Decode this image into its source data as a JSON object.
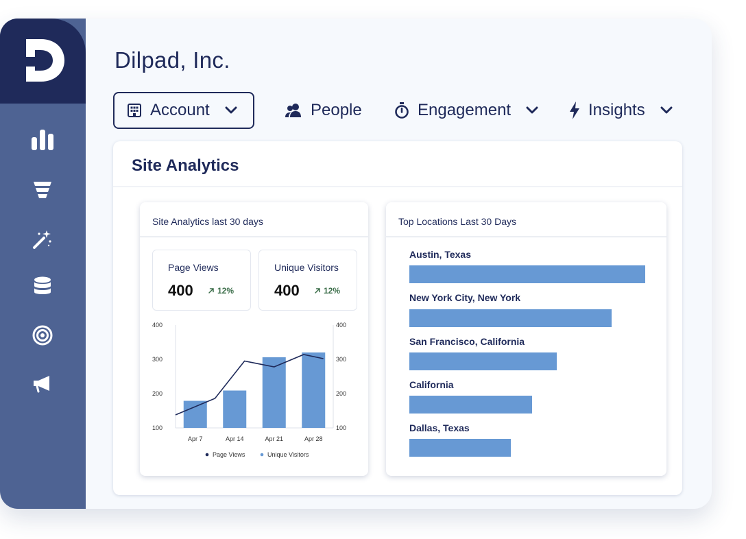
{
  "app": {
    "company_name": "Dilpad, Inc."
  },
  "nav": {
    "account": "Account",
    "people": "People",
    "engagement": "Engagement",
    "insights": "Insights"
  },
  "panel": {
    "title": "Site Analytics"
  },
  "analytics_card": {
    "title": "Site Analytics last 30 days",
    "stats": [
      {
        "label": "Page Views",
        "value": "400",
        "delta": "12%"
      },
      {
        "label": "Unique Visitors",
        "value": "400",
        "delta": "12%"
      }
    ]
  },
  "locations_card": {
    "title": "Top Locations Last 30 Days",
    "locations": [
      {
        "name": "Austin, Texas",
        "share": 1.0
      },
      {
        "name": "New York City, New York",
        "share": 0.857
      },
      {
        "name": "San Francisco, California",
        "share": 0.624
      },
      {
        "name": "California",
        "share": 0.52
      },
      {
        "name": "Dallas, Texas",
        "share": 0.43
      }
    ]
  },
  "colors": {
    "navy": "#1f2a5a",
    "sidebar": "#4e6393",
    "bar": "#6799d4",
    "delta": "#3c6e4a"
  },
  "chart_data": {
    "type": "bar",
    "categories": [
      "Apr 7",
      "Apr 14",
      "Apr 21",
      "Apr 28"
    ],
    "series": [
      {
        "name": "Page Views",
        "kind": "line",
        "color": "#1f2a5a",
        "x": [
          0.0,
          1.0,
          1.75,
          2.5,
          3.25,
          3.75
        ],
        "values": [
          138,
          186,
          295,
          278,
          314,
          302
        ]
      },
      {
        "name": "Unique Visitors",
        "kind": "bar",
        "color": "#6799d4",
        "values": [
          179,
          209,
          306,
          320
        ]
      }
    ],
    "yticks": [
      100,
      200,
      300,
      400
    ],
    "ylim": [
      100,
      400
    ],
    "legend": [
      "Page Views",
      "Unique Visitors"
    ],
    "legend_position": "bottom"
  }
}
